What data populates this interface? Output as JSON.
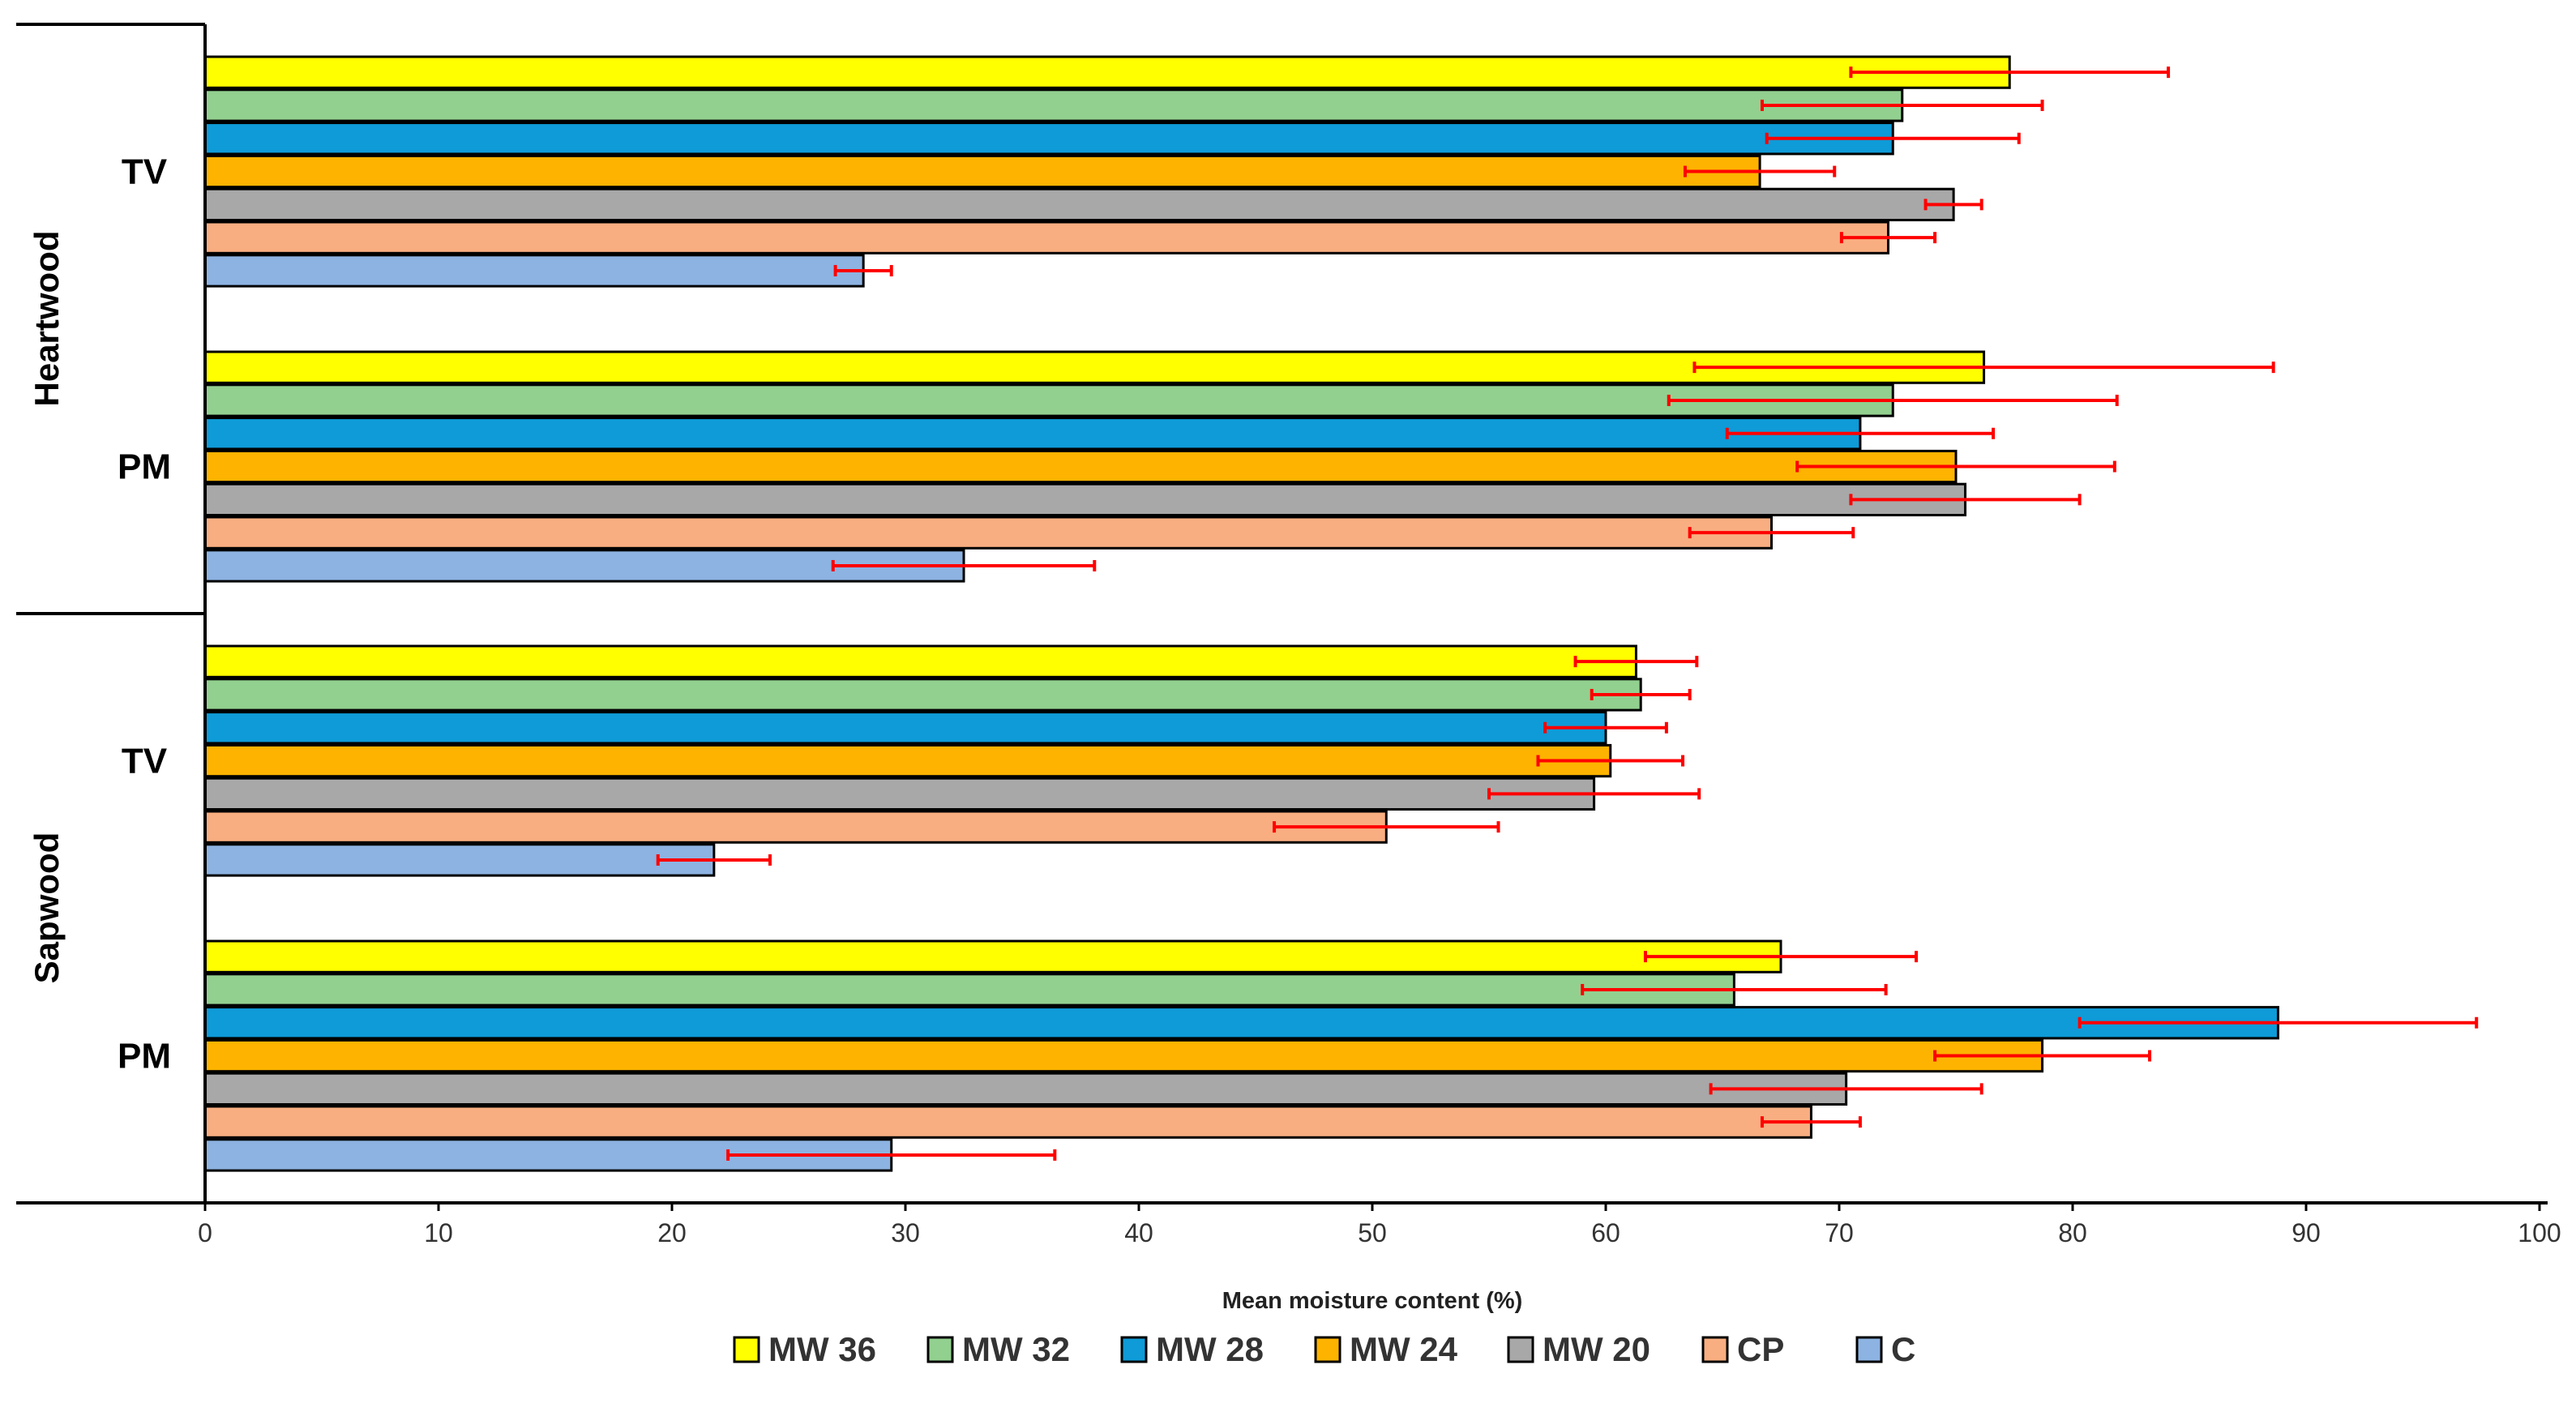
{
  "chart_data": {
    "type": "bar",
    "orientation": "horizontal",
    "title": "",
    "xlabel": "Mean moisture content (%)",
    "ylabel": "",
    "xlim": [
      0,
      100
    ],
    "xticks": [
      0,
      10,
      20,
      30,
      40,
      50,
      60,
      70,
      80,
      90,
      100
    ],
    "grid": false,
    "legend_position": "bottom",
    "sections": [
      "Heartwood",
      "Sapwood"
    ],
    "groups": [
      {
        "section": "Heartwood",
        "label": "TV"
      },
      {
        "section": "Heartwood",
        "label": "PM"
      },
      {
        "section": "Sapwood",
        "label": "TV"
      },
      {
        "section": "Sapwood",
        "label": "PM"
      }
    ],
    "series": [
      {
        "name": "MW 36",
        "color": "#FFFF00",
        "values": [
          77.3,
          76.2,
          61.3,
          67.5
        ],
        "errors": [
          6.8,
          12.4,
          2.6,
          5.8
        ]
      },
      {
        "name": "MW 32",
        "color": "#92D08F",
        "values": [
          72.7,
          72.3,
          61.5,
          65.5
        ],
        "errors": [
          6.0,
          9.6,
          2.1,
          6.5
        ]
      },
      {
        "name": "MW 28",
        "color": "#0E9BD8",
        "values": [
          72.3,
          70.9,
          60.0,
          88.8
        ],
        "errors": [
          5.4,
          5.7,
          2.6,
          8.5
        ]
      },
      {
        "name": "MW 24",
        "color": "#FDB300",
        "values": [
          66.6,
          75.0,
          60.2,
          78.7
        ],
        "errors": [
          3.2,
          6.8,
          3.1,
          4.6
        ]
      },
      {
        "name": "MW 20",
        "color": "#A8A8A8",
        "values": [
          74.9,
          75.4,
          59.5,
          70.3
        ],
        "errors": [
          1.2,
          4.9,
          4.5,
          5.8
        ]
      },
      {
        "name": "CP",
        "color": "#F9AE81",
        "values": [
          72.1,
          67.1,
          50.6,
          68.8
        ],
        "errors": [
          2.0,
          3.5,
          4.8,
          2.1
        ]
      },
      {
        "name": "C",
        "color": "#8DB3E2",
        "values": [
          28.2,
          32.5,
          21.8,
          29.4
        ],
        "errors": [
          1.2,
          5.6,
          2.4,
          7.0
        ]
      }
    ]
  }
}
